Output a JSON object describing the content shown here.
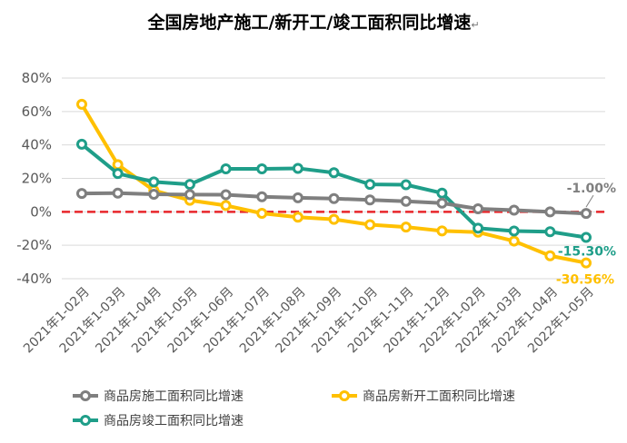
{
  "chart_data": {
    "type": "line",
    "title": "全国房地产施工/新开工/竣工面积同比增速",
    "title_mark": "↵",
    "categories": [
      "2021年1-02月",
      "2021年1-03月",
      "2021年1-04月",
      "2021年1-05月",
      "2021年1-06月",
      "2021年1-07月",
      "2021年1-08月",
      "2021年1-09月",
      "2021年1-10月",
      "2021年1-11月",
      "2021年1-12月",
      "2022年1-02月",
      "2022年1-03月",
      "2022年1-04月",
      "2022年1-05月"
    ],
    "ylim": [
      -40,
      80
    ],
    "yticks": [
      -40,
      -20,
      0,
      20,
      40,
      60,
      80
    ],
    "ytick_labels": [
      "-40%",
      "-20%",
      "0%",
      "20%",
      "40%",
      "60%",
      "80%"
    ],
    "grid": true,
    "reference_line": {
      "value": 0,
      "color": "#e8262a",
      "style": "dashed"
    },
    "legend_position": "bottom-left",
    "series": [
      {
        "name": "商品房施工面积同比增速",
        "color": "#7f7f7f",
        "values": [
          11.0,
          11.2,
          10.5,
          10.3,
          10.2,
          9.0,
          8.4,
          7.9,
          7.1,
          6.3,
          5.2,
          1.8,
          1.0,
          0.0,
          -1.0
        ],
        "end_label": "-1.00%"
      },
      {
        "name": "商品房新开工面积同比增速",
        "color": "#ffc000",
        "values": [
          64.3,
          28.2,
          12.8,
          6.9,
          3.8,
          -0.9,
          -3.2,
          -4.5,
          -7.7,
          -9.1,
          -11.4,
          -12.2,
          -17.5,
          -26.3,
          -30.56
        ],
        "end_label": "-30.56%"
      },
      {
        "name": "商品房竣工面积同比增速",
        "color": "#1f9e89",
        "values": [
          40.4,
          22.9,
          17.9,
          16.4,
          25.7,
          25.7,
          26.0,
          23.4,
          16.4,
          16.2,
          11.2,
          -9.8,
          -11.5,
          -11.9,
          -15.3
        ],
        "end_label": "-15.30%"
      }
    ]
  }
}
